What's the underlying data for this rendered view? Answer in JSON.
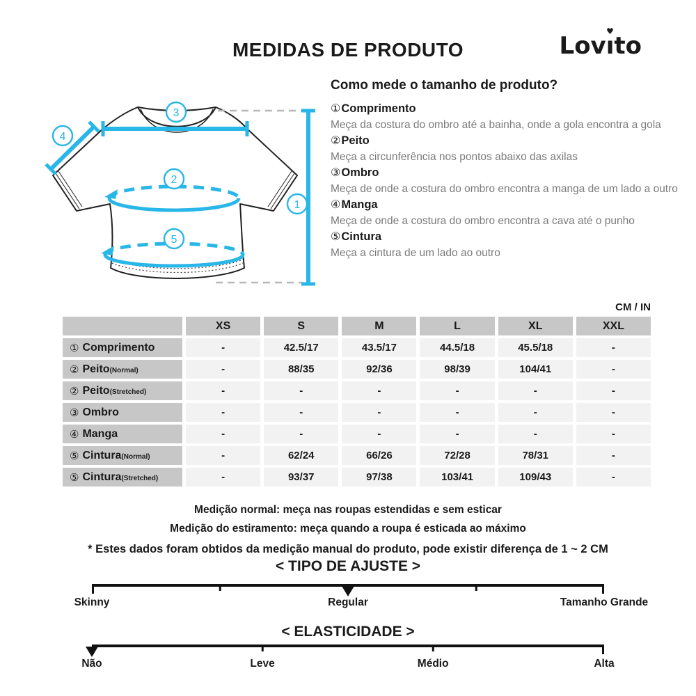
{
  "header": {
    "title": "MEDIDAS DE PRODUTO",
    "brand": {
      "full": "Lovito",
      "pre": "Lov",
      "i": "ı",
      "heart": "♥",
      "post": "to"
    }
  },
  "guide": {
    "heading": "Como mede o tamanho de produto?",
    "items": [
      {
        "num": "①",
        "name": "Comprimento",
        "desc": "Meça da costura do ombro até a bainha, onde a gola encontra a gola"
      },
      {
        "num": "②",
        "name": "Peito",
        "desc": "Meça a circunferência nos pontos abaixo das axilas"
      },
      {
        "num": "③",
        "name": "Ombro",
        "desc": "Meça de onde a costura do ombro encontra a manga de um lado a outro"
      },
      {
        "num": "④",
        "name": "Manga",
        "desc": "Meça de onde a costura do ombro encontra a cava até o punho"
      },
      {
        "num": "⑤",
        "name": "Cintura",
        "desc": "Meça a cintura de um lado ao outro"
      }
    ]
  },
  "diagram": {
    "nums": [
      "1",
      "2",
      "3",
      "4",
      "5"
    ],
    "accent_color": "#29b6e8"
  },
  "table": {
    "unit_label": "CM / IN",
    "columns": [
      "XS",
      "S",
      "M",
      "L",
      "XL",
      "XXL"
    ],
    "rows": [
      {
        "num": "①",
        "name": "Comprimento",
        "suffix": "",
        "values": [
          "-",
          "42.5/17",
          "43.5/17",
          "44.5/18",
          "45.5/18",
          "-"
        ]
      },
      {
        "num": "②",
        "name": "Peito",
        "suffix": "(Normal)",
        "values": [
          "-",
          "88/35",
          "92/36",
          "98/39",
          "104/41",
          "-"
        ]
      },
      {
        "num": "②",
        "name": "Peito",
        "suffix": "(Stretched)",
        "values": [
          "-",
          "-",
          "-",
          "-",
          "-",
          "-"
        ]
      },
      {
        "num": "③",
        "name": "Ombro",
        "suffix": "",
        "values": [
          "-",
          "-",
          "-",
          "-",
          "-",
          "-"
        ]
      },
      {
        "num": "④",
        "name": "Manga",
        "suffix": "",
        "values": [
          "-",
          "-",
          "-",
          "-",
          "-",
          "-"
        ]
      },
      {
        "num": "⑤",
        "name": "Cintura",
        "suffix": "(Normal)",
        "values": [
          "-",
          "62/24",
          "66/26",
          "72/28",
          "78/31",
          "-"
        ]
      },
      {
        "num": "⑤",
        "name": "Cintura",
        "suffix": "(Stretched)",
        "values": [
          "-",
          "93/37",
          "97/38",
          "103/41",
          "109/43",
          "-"
        ]
      }
    ]
  },
  "notes": [
    "Medição normal: meça nas roupas estendidas e sem esticar",
    "Medição do estiramento: meça quando a roupa é esticada ao máximo",
    "* Estes dados foram obtidos da medição manual do produto, pode existir diferença de 1 ~ 2 CM"
  ],
  "scales": {
    "fit": {
      "title": "< TIPO DE AJUSTE >",
      "labels": [
        {
          "text": "Skinny",
          "pct": 0
        },
        {
          "text": "Regular",
          "pct": 50
        },
        {
          "text": "Tamanho Grande",
          "pct": 100
        }
      ],
      "marker_pct": 50,
      "tick_pcts": [
        25,
        75
      ]
    },
    "stretch": {
      "title": "< ELASTICIDADE >",
      "labels": [
        {
          "text": "Não",
          "pct": 0
        },
        {
          "text": "Leve",
          "pct": 33.3
        },
        {
          "text": "Médio",
          "pct": 66.6
        },
        {
          "text": "Alta",
          "pct": 100
        }
      ],
      "marker_pct": 0,
      "tick_pcts": [
        33.3,
        66.6
      ]
    }
  }
}
